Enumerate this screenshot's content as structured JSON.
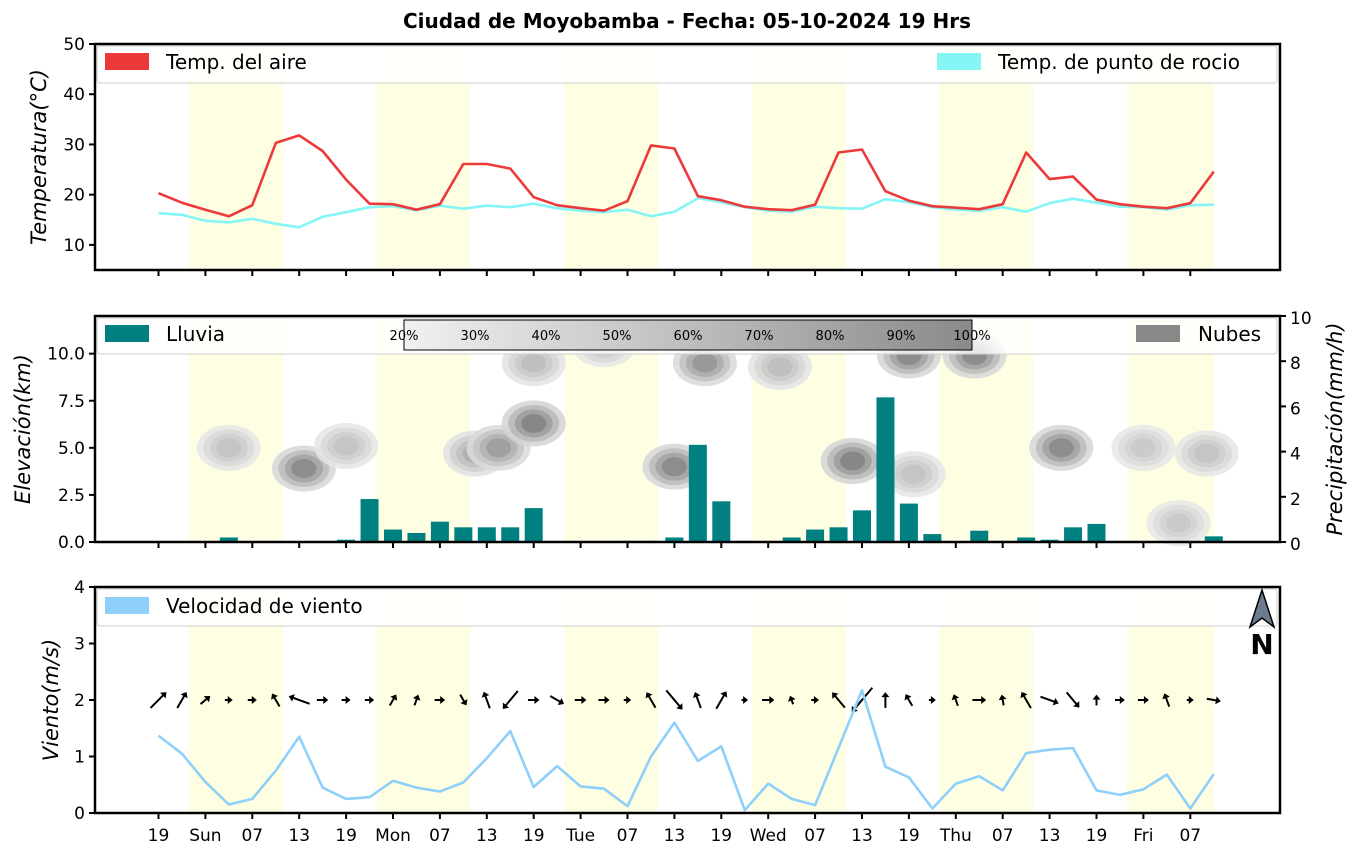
{
  "title": "Ciudad de Moyobamba   -   Fecha: 05-10-2024 19 Hrs",
  "colors": {
    "air_temp": "#ec3a3a",
    "dew_point": "#85f5f5",
    "rain": "#008080",
    "clouds": "#888888",
    "wind": "#8fd0fa",
    "day_band": "#fefee2"
  },
  "x_ticks": [
    "19",
    "Sun",
    "07",
    "13",
    "19",
    "Mon",
    "07",
    "13",
    "19",
    "Tue",
    "07",
    "13",
    "19",
    "Wed",
    "07",
    "13",
    "19",
    "Thu",
    "07",
    "13",
    "19",
    "Fri",
    "07"
  ],
  "north_label": "N",
  "north_icon": "north-arrow-icon",
  "chart_data": [
    {
      "type": "line",
      "ylabel": "Temperatura(°C)",
      "ylim": [
        5,
        50
      ],
      "yticks": [
        "10",
        "20",
        "30",
        "40",
        "50"
      ],
      "x_step_hours": 3,
      "series": [
        {
          "name": "Temp. del aire",
          "values": [
            20.3,
            18.4,
            17.0,
            15.7,
            17.9,
            30.3,
            31.8,
            28.7,
            23.0,
            18.2,
            18.1,
            17.0,
            18.1,
            26.1,
            26.1,
            25.2,
            19.5,
            17.9,
            17.3,
            16.8,
            18.7,
            29.8,
            29.2,
            19.7,
            18.9,
            17.6,
            17.1,
            16.9,
            18.0,
            28.4,
            29.0,
            20.7,
            18.8,
            17.7,
            17.4,
            17.1,
            18.1,
            28.4,
            23.1,
            23.6,
            19.0,
            18.1,
            17.6,
            17.3,
            18.3,
            24.6
          ]
        },
        {
          "name": "Temp. de punto de rocio",
          "values": [
            16.3,
            16.0,
            14.8,
            14.5,
            15.2,
            14.2,
            13.5,
            15.6,
            16.5,
            17.5,
            17.7,
            16.9,
            17.8,
            17.2,
            17.8,
            17.5,
            18.2,
            17.3,
            16.8,
            16.5,
            17.0,
            15.7,
            16.6,
            19.3,
            18.5,
            17.5,
            16.8,
            16.6,
            17.6,
            17.3,
            17.2,
            19.1,
            18.5,
            17.5,
            17.0,
            16.8,
            17.5,
            16.6,
            18.3,
            19.2,
            18.4,
            17.6,
            17.5,
            17.0,
            17.9,
            18.0
          ]
        }
      ]
    },
    {
      "type": "bar",
      "ylabel": "Elevación(km)",
      "ylabel_right": "Precipitación(mm/h)",
      "ylim_left": [
        0,
        12
      ],
      "yticks_left": [
        "0.0",
        "2.5",
        "5.0",
        "7.5",
        "10.0"
      ],
      "ylim_right": [
        0,
        10
      ],
      "yticks_right": [
        "0",
        "2",
        "4",
        "6",
        "8",
        "10"
      ],
      "series": [
        {
          "name": "Lluvia",
          "values": [
            0,
            0,
            0,
            0.2,
            0,
            0,
            0,
            0,
            0.1,
            1.9,
            0.55,
            0.4,
            0.9,
            0.65,
            0.65,
            0.65,
            1.5,
            0,
            0,
            0,
            0.05,
            0.05,
            0.2,
            4.3,
            1.8,
            0.05,
            0,
            0.2,
            0.55,
            0.65,
            1.4,
            6.4,
            1.7,
            0.35,
            0,
            0.5,
            0.05,
            0.2,
            0.1,
            0.65,
            0.8,
            0,
            0,
            0,
            0,
            0.25
          ]
        }
      ],
      "cloud_legend": "Nubes",
      "colorbar_labels": [
        "20%",
        "30%",
        "40%",
        "50%",
        "60%",
        "70%",
        "80%",
        "90%",
        "100%"
      ],
      "clouds": [
        {
          "t": 3,
          "km": 5.0,
          "cover": 0.35
        },
        {
          "t": 6.2,
          "km": 3.9,
          "cover": 0.8
        },
        {
          "t": 8,
          "km": 5.1,
          "cover": 0.35
        },
        {
          "t": 13.5,
          "km": 4.7,
          "cover": 0.5
        },
        {
          "t": 14.5,
          "km": 5.0,
          "cover": 0.65
        },
        {
          "t": 16,
          "km": 6.3,
          "cover": 0.85
        },
        {
          "t": 16,
          "km": 9.5,
          "cover": 0.4
        },
        {
          "t": 19,
          "km": 10.5,
          "cover": 0.35
        },
        {
          "t": 22,
          "km": 4.0,
          "cover": 0.8
        },
        {
          "t": 23.3,
          "km": 9.5,
          "cover": 0.7
        },
        {
          "t": 26.5,
          "km": 9.3,
          "cover": 0.4
        },
        {
          "t": 29.6,
          "km": 4.3,
          "cover": 0.85
        },
        {
          "t": 32,
          "km": 9.9,
          "cover": 0.8
        },
        {
          "t": 32.2,
          "km": 3.6,
          "cover": 0.35
        },
        {
          "t": 34.8,
          "km": 9.9,
          "cover": 0.8
        },
        {
          "t": 38.5,
          "km": 5.0,
          "cover": 0.8
        },
        {
          "t": 42,
          "km": 5.0,
          "cover": 0.3
        },
        {
          "t": 43.5,
          "km": 1.0,
          "cover": 0.3
        },
        {
          "t": 44.7,
          "km": 4.7,
          "cover": 0.35
        }
      ]
    },
    {
      "type": "line",
      "ylabel": "Viento(m/s)",
      "ylim": [
        0,
        4
      ],
      "yticks": [
        "0",
        "1",
        "2",
        "3",
        "4"
      ],
      "series": [
        {
          "name": "Velocidad de viento",
          "values": [
            1.37,
            1.05,
            0.55,
            0.15,
            0.25,
            0.75,
            1.35,
            0.45,
            0.25,
            0.28,
            0.57,
            0.45,
            0.38,
            0.54,
            0.97,
            1.45,
            0.46,
            0.83,
            0.47,
            0.43,
            0.12,
            1.0,
            1.6,
            0.92,
            1.18,
            0.05,
            0.52,
            0.25,
            0.14,
            1.15,
            2.17,
            0.82,
            0.63,
            0.08,
            0.52,
            0.65,
            0.4,
            1.06,
            1.12,
            1.15,
            0.4,
            0.32,
            0.42,
            0.68,
            0.08,
            0.69
          ]
        }
      ],
      "wind_direction_deg": [
        315,
        300,
        320,
        0,
        0,
        240,
        200,
        0,
        0,
        0,
        300,
        290,
        0,
        60,
        250,
        130,
        0,
        30,
        0,
        0,
        0,
        240,
        50,
        250,
        300,
        0,
        0,
        250,
        0,
        230,
        130,
        270,
        240,
        0,
        250,
        0,
        260,
        240,
        20,
        50,
        270,
        0,
        0,
        250,
        0,
        10
      ]
    }
  ]
}
